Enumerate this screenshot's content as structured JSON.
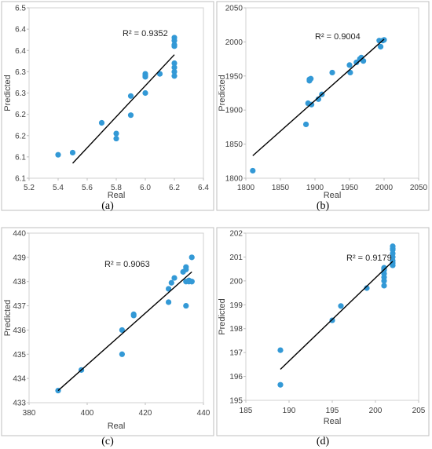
{
  "colors": {
    "points": "#3399d6",
    "trendline": "#000000",
    "frame": "#bfbfbf",
    "text": "#404040"
  },
  "chart_data": [
    {
      "type": "scatter",
      "panel_label": "(a)",
      "xlabel": "Real",
      "ylabel": "Predicted",
      "xlim": [
        5.2,
        6.4
      ],
      "ylim": [
        6.1,
        6.5
      ],
      "x_ticks": [
        "5.2",
        "5.4",
        "5.6",
        "5.8",
        "6.0",
        "6.2",
        "6.4"
      ],
      "y_ticks": [
        "6.1",
        "6.1",
        "6.2",
        "6.2",
        "6.3",
        "6.3",
        "6.4",
        "6.4",
        "6.5"
      ],
      "annotation": "R² = 0.9352",
      "trendline": {
        "x": [
          5.5,
          6.2
        ],
        "y": [
          6.135,
          6.39
        ]
      },
      "points": {
        "x": [
          5.4,
          5.5,
          5.7,
          5.8,
          5.8,
          5.9,
          5.9,
          6.0,
          6.0,
          6.0,
          6.0,
          6.1,
          6.2,
          6.2,
          6.2,
          6.2,
          6.2,
          6.2,
          6.2,
          6.2
        ],
        "y": [
          6.155,
          6.16,
          6.23,
          6.205,
          6.193,
          6.248,
          6.293,
          6.3,
          6.34,
          6.345,
          6.338,
          6.345,
          6.43,
          6.423,
          6.413,
          6.41,
          6.37,
          6.36,
          6.35,
          6.34
        ]
      }
    },
    {
      "type": "scatter",
      "panel_label": "(b)",
      "xlabel": "Real",
      "ylabel": "Predicted",
      "xlim": [
        1800,
        2050
      ],
      "ylim": [
        1800,
        2050
      ],
      "x_ticks": [
        "1800",
        "1850",
        "1900",
        "1950",
        "2000",
        "2050"
      ],
      "y_ticks": [
        "1800",
        "1850",
        "1900",
        "1950",
        "2000",
        "2050"
      ],
      "annotation": "R² = 0.9004",
      "trendline": {
        "x": [
          1810,
          2000
        ],
        "y": [
          1833,
          2004
        ]
      },
      "points": {
        "x": [
          1810,
          1887,
          1890,
          1892,
          1892,
          1894,
          1895,
          1905,
          1910,
          1925,
          1950,
          1951,
          1960,
          1965,
          1967,
          1970,
          1993,
          1995,
          1998,
          2000
        ],
        "y": [
          1811,
          1879,
          1910,
          1943,
          1945,
          1946,
          1908,
          1916,
          1923,
          1955,
          1966,
          1955,
          1970,
          1975,
          1977,
          1972,
          2002,
          1993,
          2002,
          2003
        ]
      }
    },
    {
      "type": "scatter",
      "panel_label": "(c)",
      "xlabel": "Real",
      "ylabel": "Predicted",
      "xlim": [
        380,
        440
      ],
      "ylim": [
        433,
        440
      ],
      "x_ticks": [
        "380",
        "400",
        "420",
        "440"
      ],
      "y_ticks": [
        "433",
        "434",
        "435",
        "436",
        "437",
        "438",
        "439",
        "440"
      ],
      "annotation": "R² = 0.9063",
      "trendline": {
        "x": [
          390,
          436
        ],
        "y": [
          433.5,
          438.4
        ]
      },
      "points": {
        "x": [
          390,
          398,
          412,
          412,
          416,
          416,
          428,
          428,
          429,
          430,
          433,
          434,
          434,
          434,
          434,
          435,
          435,
          436,
          436,
          436
        ],
        "y": [
          433.5,
          434.35,
          436.0,
          435.0,
          436.6,
          436.65,
          437.15,
          437.7,
          437.95,
          438.15,
          438.4,
          438.6,
          438.5,
          438.0,
          437.0,
          438.0,
          438.05,
          438.0,
          438.0,
          439.0
        ]
      }
    },
    {
      "type": "scatter",
      "panel_label": "(d)",
      "xlabel": "Real",
      "ylabel": "Predicted",
      "xlim": [
        185,
        205
      ],
      "ylim": [
        195,
        202
      ],
      "x_ticks": [
        "185",
        "190",
        "195",
        "200",
        "205"
      ],
      "y_ticks": [
        "195",
        "196",
        "197",
        "198",
        "199",
        "200",
        "201",
        "202"
      ],
      "annotation": "R² = 0.9179",
      "trendline": {
        "x": [
          189,
          202
        ],
        "y": [
          196.3,
          200.82
        ]
      },
      "points": {
        "x": [
          189,
          189,
          195,
          196,
          199,
          201,
          201,
          201,
          201,
          201,
          201,
          201,
          202,
          202,
          202,
          202,
          202,
          202,
          202,
          202
        ],
        "y": [
          197.1,
          195.65,
          198.35,
          198.95,
          199.7,
          199.8,
          200.0,
          200.15,
          200.3,
          200.45,
          200.5,
          200.55,
          200.65,
          200.75,
          200.85,
          201.0,
          201.15,
          201.3,
          201.35,
          201.45
        ]
      }
    }
  ]
}
